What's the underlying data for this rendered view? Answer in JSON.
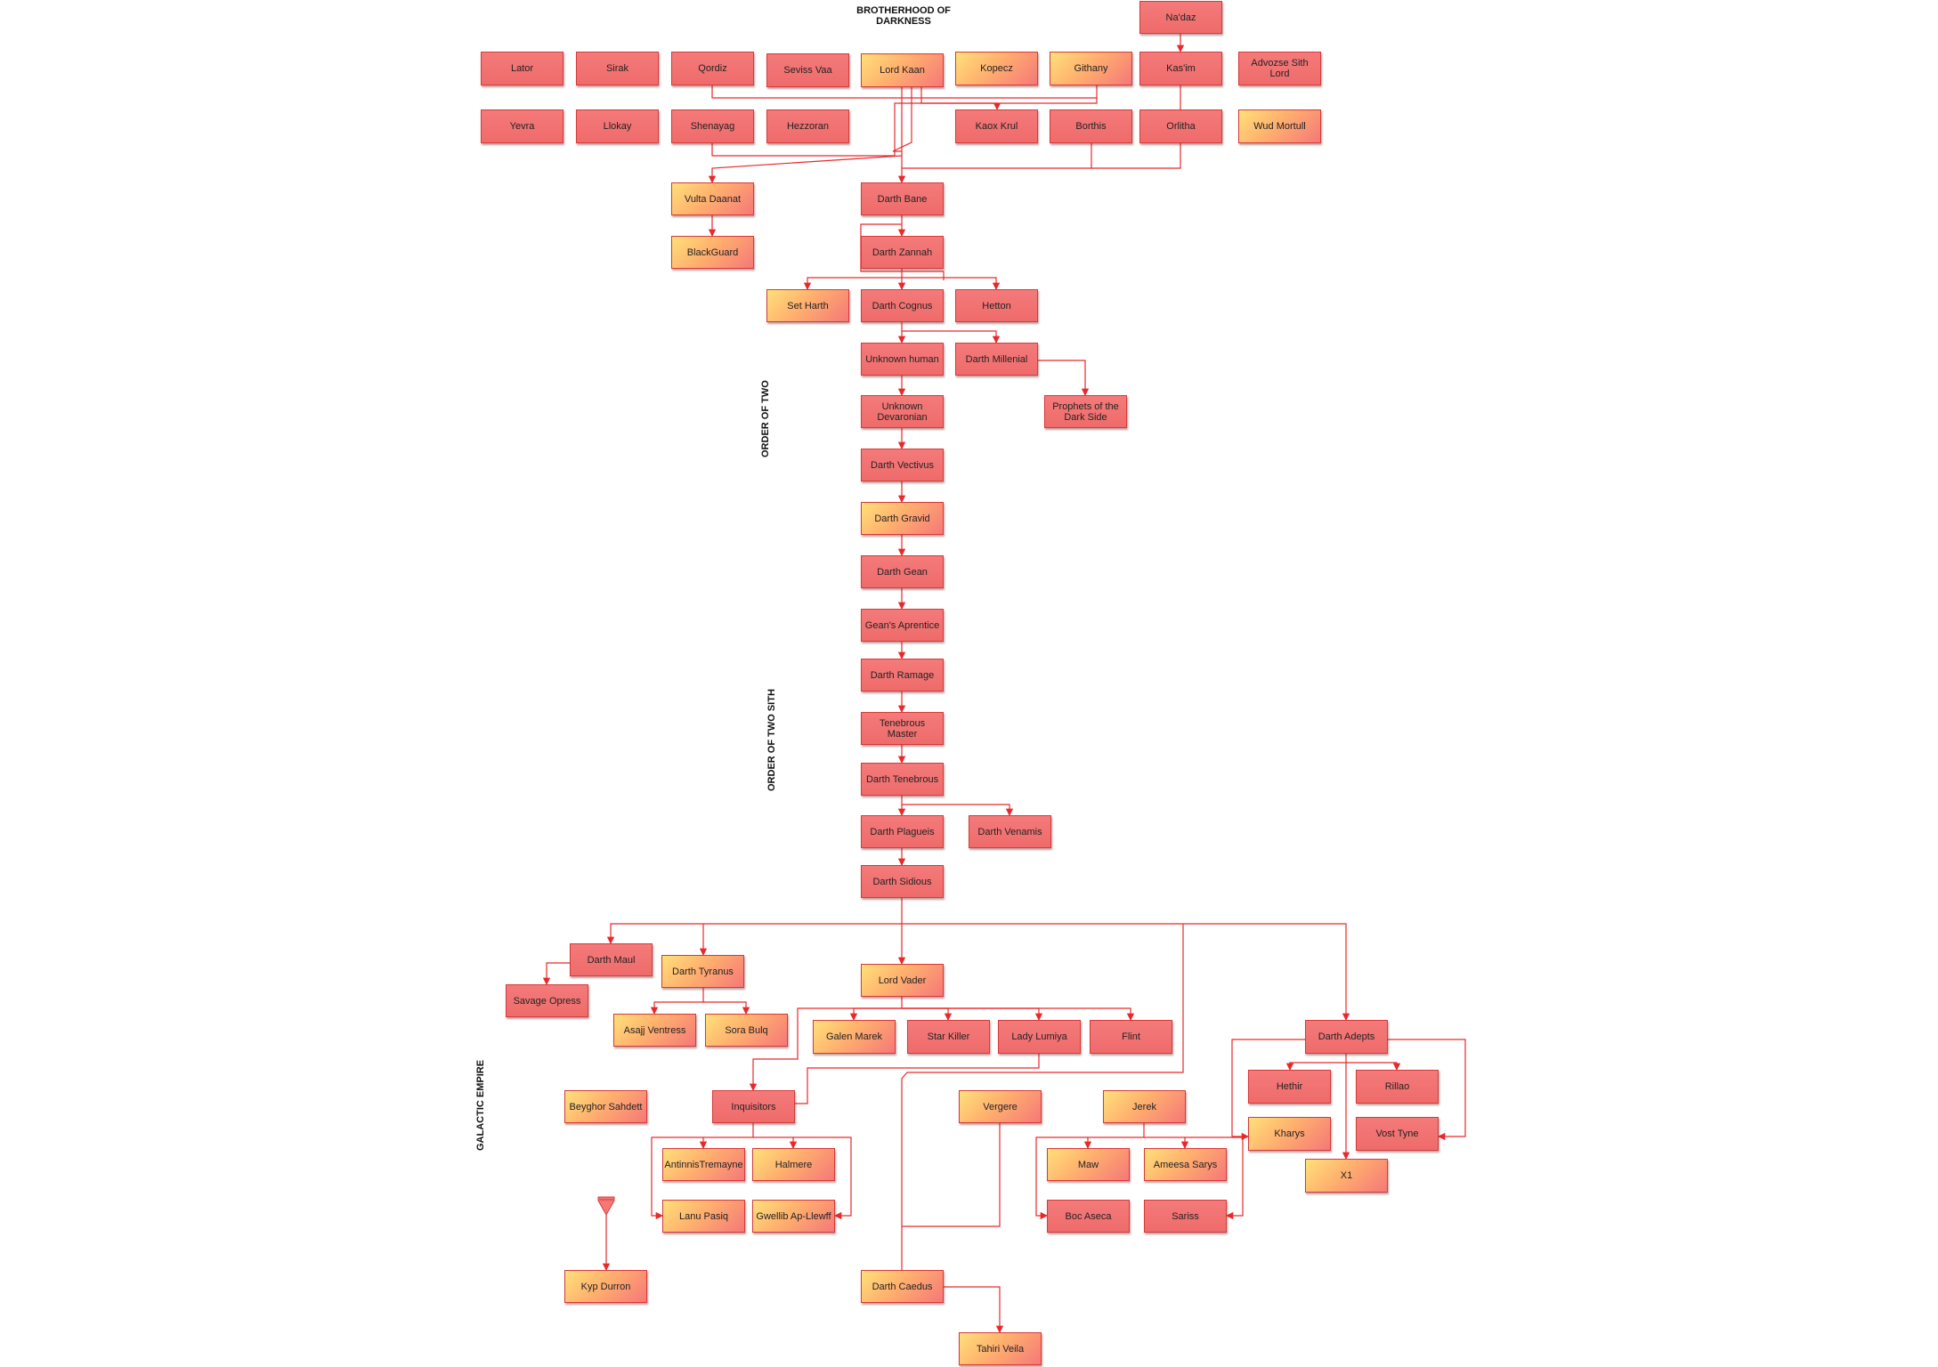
{
  "sections": {
    "brotherhood": "BROTHERHOOD OF\nDARKNESS",
    "order_of_two": "ORDER OF TWO",
    "order_of_two_sith": "ORDER OF TWO SITH",
    "galactic_empire": "GALACTIC EMPIRE"
  },
  "nodes": {
    "nadaz": "Na'daz",
    "lator": "Lator",
    "sirak": "Sirak",
    "qordiz": "Qordiz",
    "seviss_vaa": "Seviss Vaa",
    "lord_kaan": "Lord Kaan",
    "kopecz": "Kopecz",
    "githany": "Githany",
    "kasim": "Kas'im",
    "advozse": "Advozse Sith Lord",
    "yevra": "Yevra",
    "llokay": "Llokay",
    "shenayag": "Shenayag",
    "hezzoran": "Hezzoran",
    "kaox_krul": "Kaox Krul",
    "borthis": "Borthis",
    "orlitha": "Orlitha",
    "wud_mortull": "Wud Mortull",
    "vulta_daanat": "Vulta Daanat",
    "darth_bane": "Darth Bane",
    "blackguard": "BlackGuard",
    "darth_zannah": "Darth Zannah",
    "set_harth": "Set Harth",
    "darth_cognus": "Darth Cognus",
    "hetton": "Hetton",
    "unknown_human": "Unknown human",
    "darth_millenial": "Darth Millenial",
    "prophets": "Prophets of the Dark Side",
    "unknown_devaronian": "Unknown Devaronian",
    "darth_vectivus": "Darth Vectivus",
    "darth_gravid": "Darth Gravid",
    "darth_gean": "Darth Gean",
    "geans_aprentice": "Gean's Aprentice",
    "darth_ramage": "Darth Ramage",
    "tenebrous_master": "Tenebrous Master",
    "darth_tenebrous": "Darth Tenebrous",
    "darth_plagueis": "Darth Plagueis",
    "darth_venamis": "Darth Venamis",
    "darth_sidious": "Darth Sidious",
    "darth_maul": "Darth Maul",
    "darth_tyranus": "Darth Tyranus",
    "savage_opress": "Savage Opress",
    "asajj_ventress": "Asajj Ventress",
    "sora_bulq": "Sora Bulq",
    "lord_vader": "Lord Vader",
    "galen_marek": "Galen Marek",
    "star_killer": "Star Killer",
    "lady_lumiya": "Lady Lumiya",
    "flint": "Flint",
    "darth_adepts": "Darth Adepts",
    "hethir": "Hethir",
    "rillao": "Rillao",
    "kharys": "Kharys",
    "vost_tyne": "Vost Tyne",
    "x1": "X1",
    "beyghor": "Beyghor Sahdett",
    "inquisitors": "Inquisitors",
    "vergere": "Vergere",
    "jerek": "Jerek",
    "antinnis": "AntinnisTremayne",
    "halmere": "Halmere",
    "lanu_pasiq": "Lanu Pasiq",
    "gwellib": "Gwellib Ap-Llewff",
    "maw": "Maw",
    "ameesa_sarys": "Ameesa Sarys",
    "boc_aseca": "Boc Aseca",
    "sariss": "Sariss",
    "kyp_durron": "Kyp Durron",
    "darth_caedus": "Darth Caedus",
    "tahiri_veila": "Tahiri Veila"
  },
  "colors": {
    "line": "#e8292b",
    "node_border": "#d63a3a",
    "node_red": "#f47a7a",
    "node_gold": "#ffd67a"
  }
}
